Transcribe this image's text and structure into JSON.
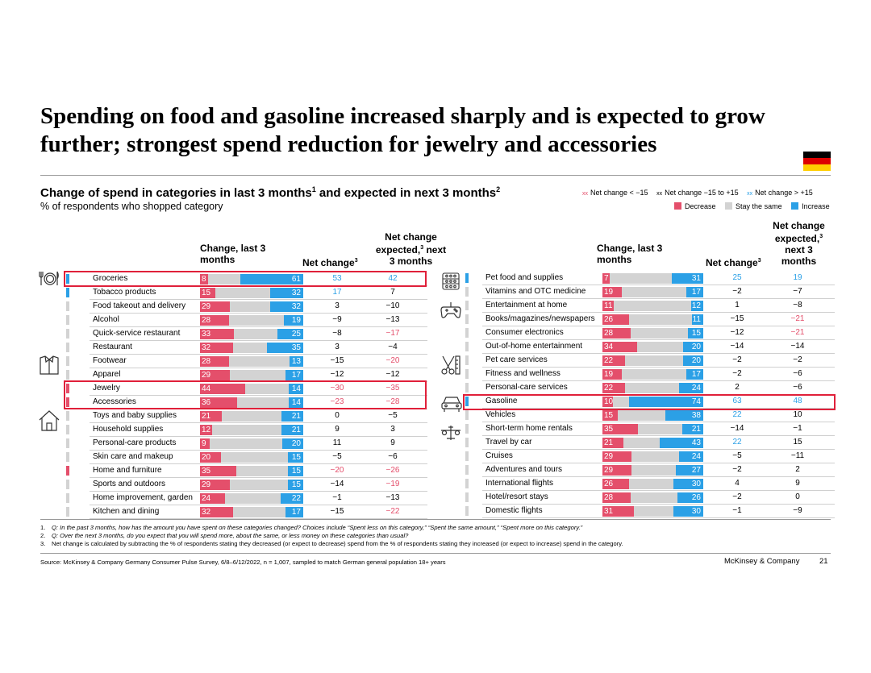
{
  "title": "Spending on food and gasoline increased sharply and is expected to grow further; strongest spend reduction for jewelry and accessories",
  "subtitle": "Change of spend in categories in last 3 months",
  "subtitle_sup1": "1",
  "subtitle_mid": " and expected in next 3 months",
  "subtitle_sup2": "2",
  "subnote": "% of respondents who shopped category",
  "legend": {
    "xx": "xx",
    "net_low": "Net change < −15",
    "net_mid": "Net change −15 to +15",
    "net_high": "Net change > +15",
    "decrease": "Decrease",
    "same": "Stay the same",
    "increase": "Increase"
  },
  "colors": {
    "decrease": "#e44f6b",
    "same": "#d3d3d3",
    "increase": "#2ba0e6",
    "flag_black": "#000000",
    "flag_red": "#dd0000",
    "flag_gold": "#ffce00"
  },
  "headers": {
    "change_last": "Change, last 3 months",
    "net_change": "Net change",
    "net_sup": "3",
    "net_expected": "Net change expected,",
    "net_expected_next": " next 3 months"
  },
  "chart_data": {
    "type": "bar",
    "title": "Change of spend in categories in last 3 months and expected in next 3 months",
    "series_names": [
      "Decrease",
      "Stay the same",
      "Increase"
    ],
    "left": [
      {
        "label": "Groceries",
        "dec": 8,
        "inc": 61,
        "net": "53",
        "exp": "42",
        "indicator": "increase"
      },
      {
        "label": "Tobacco products",
        "dec": 15,
        "inc": 32,
        "net": "17",
        "exp": "7",
        "indicator": "increase"
      },
      {
        "label": "Food takeout and delivery",
        "dec": 29,
        "inc": 32,
        "net": "3",
        "exp": "−10",
        "indicator": "same"
      },
      {
        "label": "Alcohol",
        "dec": 28,
        "inc": 19,
        "net": "−9",
        "exp": "−13",
        "indicator": "same"
      },
      {
        "label": "Quick-service restaurant",
        "dec": 33,
        "inc": 25,
        "net": "−8",
        "exp": "−17",
        "indicator": "same"
      },
      {
        "label": "Restaurant",
        "dec": 32,
        "inc": 35,
        "net": "3",
        "exp": "−4",
        "indicator": "same"
      },
      {
        "label": "Footwear",
        "dec": 28,
        "inc": 13,
        "net": "−15",
        "exp": "−20",
        "indicator": "same"
      },
      {
        "label": "Apparel",
        "dec": 29,
        "inc": 17,
        "net": "−12",
        "exp": "−12",
        "indicator": "same"
      },
      {
        "label": "Jewelry",
        "dec": 44,
        "inc": 14,
        "net": "−30",
        "exp": "−35",
        "indicator": "decrease"
      },
      {
        "label": "Accessories",
        "dec": 36,
        "inc": 14,
        "net": "−23",
        "exp": "−28",
        "indicator": "decrease"
      },
      {
        "label": "Toys and baby supplies",
        "dec": 21,
        "inc": 21,
        "net": "0",
        "exp": "−5",
        "indicator": "same"
      },
      {
        "label": "Household supplies",
        "dec": 12,
        "inc": 21,
        "net": "9",
        "exp": "3",
        "indicator": "same"
      },
      {
        "label": "Personal-care products",
        "dec": 9,
        "inc": 20,
        "net": "11",
        "exp": "9",
        "indicator": "same"
      },
      {
        "label": "Skin care and makeup",
        "dec": 20,
        "inc": 15,
        "net": "−5",
        "exp": "−6",
        "indicator": "same"
      },
      {
        "label": "Home and furniture",
        "dec": 35,
        "inc": 15,
        "net": "−20",
        "exp": "−26",
        "indicator": "decrease"
      },
      {
        "label": "Sports and outdoors",
        "dec": 29,
        "inc": 15,
        "net": "−14",
        "exp": "−19",
        "indicator": "same"
      },
      {
        "label": "Home improvement, garden",
        "dec": 24,
        "inc": 22,
        "net": "−1",
        "exp": "−13",
        "indicator": "same"
      },
      {
        "label": "Kitchen and dining",
        "dec": 32,
        "inc": 17,
        "net": "−15",
        "exp": "−22",
        "indicator": "same"
      }
    ],
    "right": [
      {
        "label": "Pet food and supplies",
        "dec": 7,
        "inc": 31,
        "net": "25",
        "exp": "19",
        "indicator": "increase"
      },
      {
        "label": "Vitamins and OTC medicine",
        "dec": 19,
        "inc": 17,
        "net": "−2",
        "exp": "−7",
        "indicator": "same"
      },
      {
        "label": "Entertainment at home",
        "dec": 11,
        "inc": 12,
        "net": "1",
        "exp": "−8",
        "indicator": "same"
      },
      {
        "label": "Books/magazines/newspapers",
        "dec": 26,
        "inc": 11,
        "net": "−15",
        "exp": "−21",
        "indicator": "same"
      },
      {
        "label": "Consumer electronics",
        "dec": 28,
        "inc": 15,
        "net": "−12",
        "exp": "−21",
        "indicator": "same"
      },
      {
        "label": "Out-of-home entertainment",
        "dec": 34,
        "inc": 20,
        "net": "−14",
        "exp": "−14",
        "indicator": "same"
      },
      {
        "label": "Pet care services",
        "dec": 22,
        "inc": 20,
        "net": "−2",
        "exp": "−2",
        "indicator": "same"
      },
      {
        "label": "Fitness and wellness",
        "dec": 19,
        "inc": 17,
        "net": "−2",
        "exp": "−6",
        "indicator": "same"
      },
      {
        "label": "Personal-care services",
        "dec": 22,
        "inc": 24,
        "net": "2",
        "exp": "−6",
        "indicator": "same"
      },
      {
        "label": "Gasoline",
        "dec": 10,
        "inc": 74,
        "net": "63",
        "exp": "48",
        "indicator": "increase"
      },
      {
        "label": "Vehicles",
        "dec": 15,
        "inc": 38,
        "net": "22",
        "exp": "10",
        "indicator": "same"
      },
      {
        "label": "Short-term home rentals",
        "dec": 35,
        "inc": 21,
        "net": "−14",
        "exp": "−1",
        "indicator": "same"
      },
      {
        "label": "Travel by car",
        "dec": 21,
        "inc": 43,
        "net": "22",
        "exp": "15",
        "indicator": "same"
      },
      {
        "label": "Cruises",
        "dec": 29,
        "inc": 24,
        "net": "−5",
        "exp": "−11",
        "indicator": "same"
      },
      {
        "label": "Adventures and tours",
        "dec": 29,
        "inc": 27,
        "net": "−2",
        "exp": "2",
        "indicator": "same"
      },
      {
        "label": "International flights",
        "dec": 26,
        "inc": 30,
        "net": "4",
        "exp": "9",
        "indicator": "same"
      },
      {
        "label": "Hotel/resort stays",
        "dec": 28,
        "inc": 26,
        "net": "−2",
        "exp": "0",
        "indicator": "same"
      },
      {
        "label": "Domestic flights",
        "dec": 31,
        "inc": 30,
        "net": "−1",
        "exp": "−9",
        "indicator": "same"
      }
    ]
  },
  "footnotes": [
    {
      "num": "1.",
      "text": "Q: In the past 3 months, how has the amount you have spent on these categories changed? Choices include “Spent less on this category,” “Spent the same amount,” “Spent more on this category.”"
    },
    {
      "num": "2.",
      "text": "Q: Over the next 3 months, do you expect that you will spend more, about the same, or less money on these categories than usual?"
    },
    {
      "num": "3.",
      "text": "Net change is calculated by subtracting the % of respondents stating they decreased (or expect to decrease) spend from the % of respondents stating they increased (or expect to increase) spend in the category."
    }
  ],
  "source": "Source: McKinsey & Company Germany Consumer Pulse Survey, 6/8–6/12/2022, n = 1,007, sampled to match German general population 18+ years",
  "brand": "McKinsey & Company",
  "page_number": "21"
}
